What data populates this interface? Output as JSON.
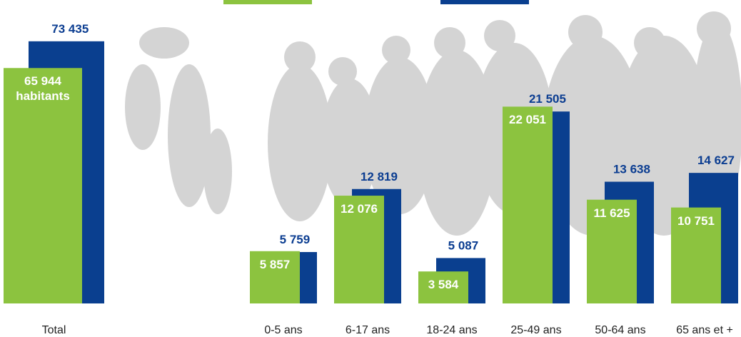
{
  "chart_data": [
    {
      "type": "bar",
      "categories": [
        "Total"
      ],
      "ylim": [
        0,
        85000
      ],
      "series": [
        {
          "color": "#8cc33f",
          "values": [
            65944
          ],
          "value_labels": [
            "65 944 habitants"
          ]
        },
        {
          "color": "#0a3f8f",
          "values": [
            73435
          ],
          "value_labels": [
            "73 435"
          ]
        }
      ]
    },
    {
      "type": "bar",
      "categories": [
        "0-5 ans",
        "6-17 ans",
        "18-24 ans",
        "25-49 ans",
        "50-64 ans",
        "65 ans et +"
      ],
      "ylim": [
        0,
        34000
      ],
      "series": [
        {
          "color": "#8cc33f",
          "values": [
            5857,
            12076,
            3584,
            22051,
            11625,
            10751
          ],
          "value_labels": [
            "5 857",
            "12 076",
            "3 584",
            "22 051",
            "11 625",
            "10 751"
          ]
        },
        {
          "color": "#0a3f8f",
          "values": [
            5759,
            12819,
            5087,
            21505,
            13638,
            14627
          ],
          "value_labels": [
            "5 759",
            "12 819",
            "5 087",
            "21 505",
            "13 638",
            "14 627"
          ]
        }
      ]
    }
  ]
}
